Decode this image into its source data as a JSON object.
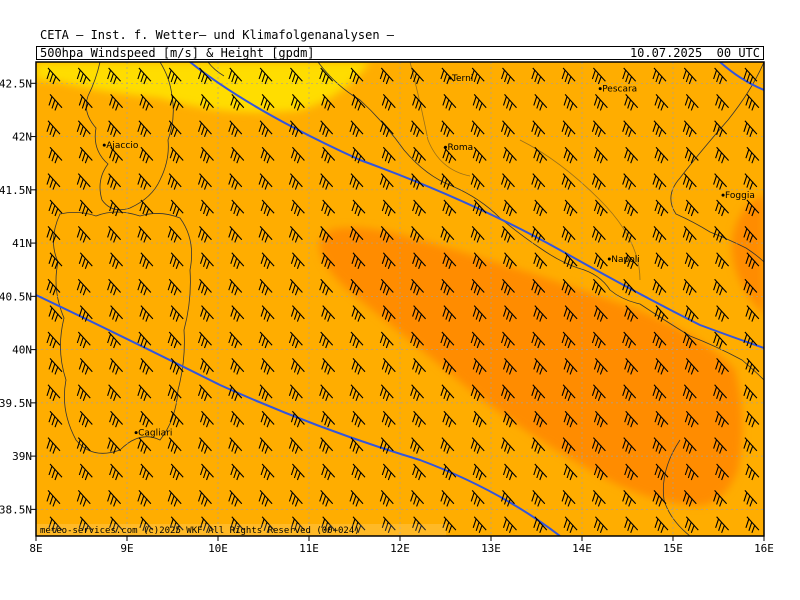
{
  "header": {
    "institute": "CETA — Inst. f. Wetter— und Klimafolgenanalysen —",
    "product": "500hpa_Windspeed_[m/s]_&_Height_[gpdm]",
    "valid_time": "10.07.2025  00 UTC"
  },
  "map": {
    "lon_range": [
      8,
      16
    ],
    "lat_range": [
      38.25,
      42.7
    ],
    "x_tick_labels": [
      "8E",
      "9E",
      "10E",
      "11E",
      "12E",
      "13E",
      "14E",
      "15E",
      "16E"
    ],
    "y_tick_labels": [
      "42.5N",
      "42N",
      "41.5N",
      "41N",
      "40.5N",
      "40N",
      "39.5N",
      "39N",
      "38.5N"
    ],
    "y_tick_values": [
      42.5,
      42,
      41.5,
      41,
      40.5,
      40,
      39.5,
      39,
      38.5
    ],
    "colors": {
      "background_speed": "#ffad00",
      "low_speed": "#ffdd00",
      "high_speed": "#ff8c00",
      "height_contours": "#3355dd",
      "coastline": "#333333",
      "grid": "#a0a0a0"
    },
    "cities": [
      {
        "name": "Terni",
        "lon": 12.55,
        "lat": 42.55
      },
      {
        "name": "Pescara",
        "lon": 14.2,
        "lat": 42.45
      },
      {
        "name": "Ajaccio",
        "lon": 8.75,
        "lat": 41.92
      },
      {
        "name": "Roma",
        "lon": 12.5,
        "lat": 41.9
      },
      {
        "name": "Foggia",
        "lon": 15.55,
        "lat": 41.45
      },
      {
        "name": "Napoli",
        "lon": 14.3,
        "lat": 40.85
      },
      {
        "name": "Cagliari",
        "lon": 9.1,
        "lat": 39.22
      }
    ],
    "credit": "meteo-services.com  (c)2025 WKF  All Rights Reserved  (00+024)"
  }
}
